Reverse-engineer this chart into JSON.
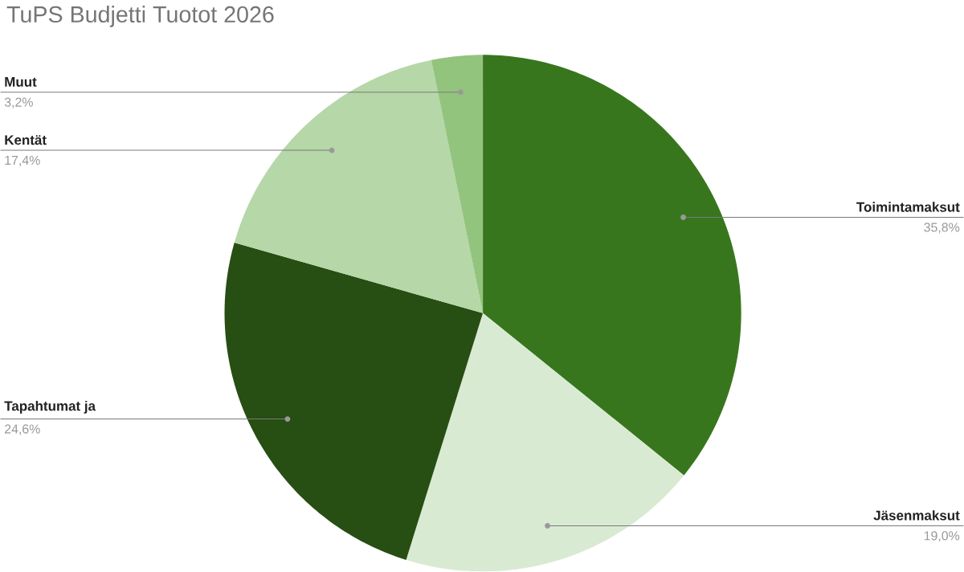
{
  "chart_data": {
    "type": "pie",
    "title": "TuPS Budjetti Tuotot 2026",
    "categories": [
      "Toimintamaksut",
      "Jäsenmaksut",
      "Tapahtumat ja",
      "Kentät",
      "Muut"
    ],
    "values": [
      35.8,
      19.0,
      24.6,
      17.4,
      3.2
    ],
    "value_labels": [
      "35,8%",
      "19,0%",
      "24,6%",
      "17,4%",
      "3,2%"
    ],
    "colors": [
      "#38761d",
      "#d9ead3",
      "#274e13",
      "#b6d7a8",
      "#93c47d"
    ]
  }
}
